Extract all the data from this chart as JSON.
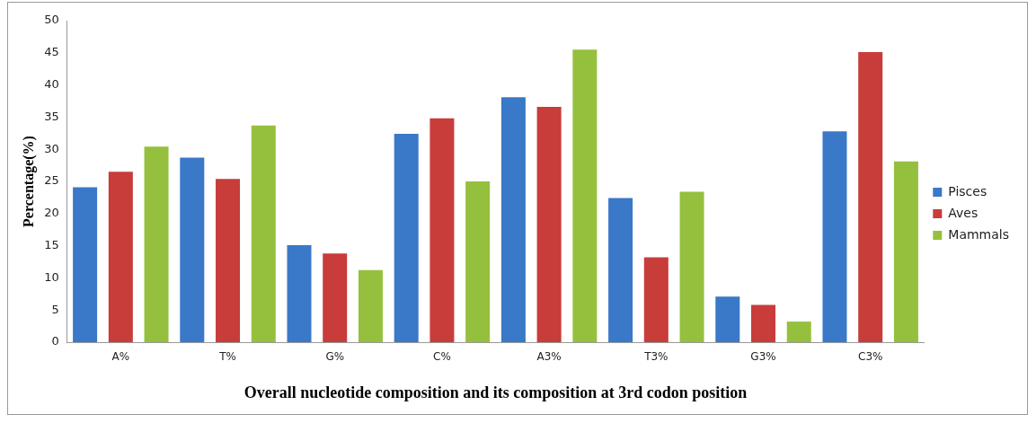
{
  "chart_data": {
    "type": "bar",
    "xlabel": "Overall nucleotide composition and its composition at 3rd codon position",
    "ylabel": "Percentage(%)",
    "categories": [
      "A%",
      "T%",
      "G%",
      "C%",
      "A3%",
      "T3%",
      "G3%",
      "C3%"
    ],
    "series": [
      {
        "name": "Pisces",
        "color": "#3a78c8",
        "values": [
          24.1,
          28.7,
          15.1,
          32.4,
          38.1,
          22.4,
          7.1,
          32.8
        ]
      },
      {
        "name": "Aves",
        "color": "#c83c3a",
        "values": [
          26.5,
          25.4,
          13.8,
          34.8,
          36.6,
          13.2,
          5.8,
          45.1
        ]
      },
      {
        "name": "Mammals",
        "color": "#95c03e",
        "values": [
          30.4,
          33.7,
          11.2,
          25.0,
          45.5,
          23.4,
          3.2,
          28.1
        ]
      }
    ],
    "ylim": [
      0,
      50
    ],
    "yticks": [
      0,
      5,
      10,
      15,
      20,
      25,
      30,
      35,
      40,
      45,
      50
    ],
    "grid": false,
    "legend": "right"
  }
}
